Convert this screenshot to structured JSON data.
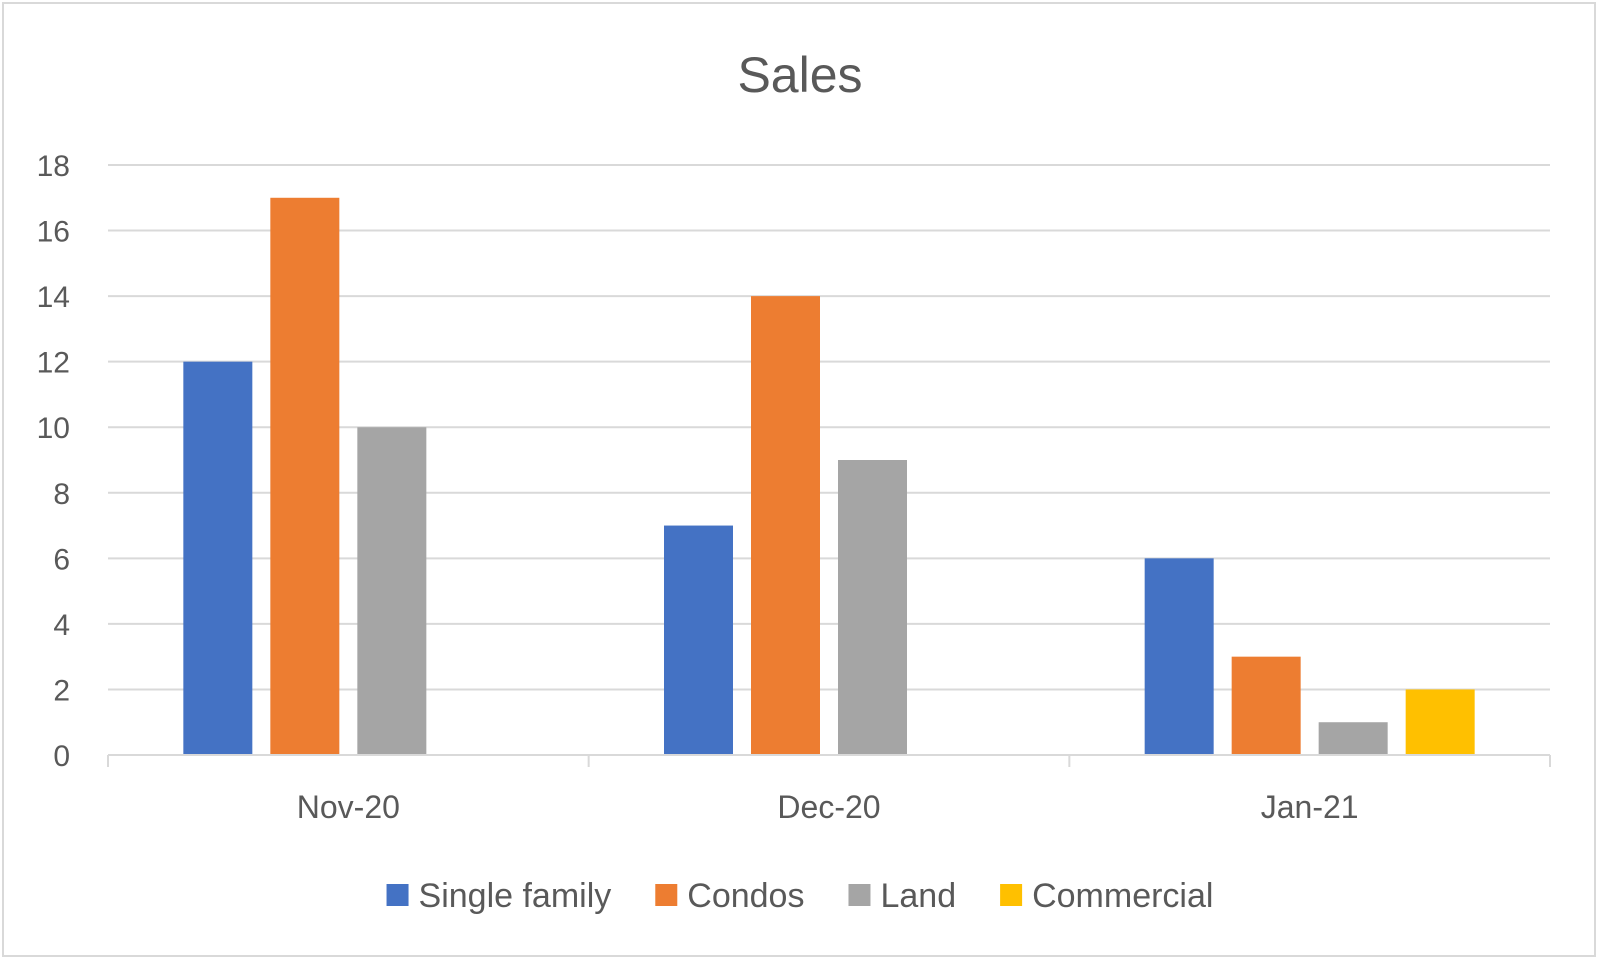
{
  "chart_data": {
    "type": "bar",
    "title": "Sales",
    "categories": [
      "Nov-20",
      "Dec-20",
      "Jan-21"
    ],
    "series": [
      {
        "name": "Single family",
        "color": "#4472C4",
        "values": [
          12,
          7,
          6
        ]
      },
      {
        "name": "Condos",
        "color": "#ED7D31",
        "values": [
          17,
          14,
          3
        ]
      },
      {
        "name": "Land",
        "color": "#A5A5A5",
        "values": [
          10,
          9,
          1
        ]
      },
      {
        "name": "Commercial",
        "color": "#FFC000",
        "values": [
          0,
          0,
          2
        ]
      }
    ],
    "ylim": [
      0,
      18
    ],
    "yticks": [
      0,
      2,
      4,
      6,
      8,
      10,
      12,
      14,
      16,
      18
    ],
    "grid": true,
    "legend": "bottom"
  }
}
